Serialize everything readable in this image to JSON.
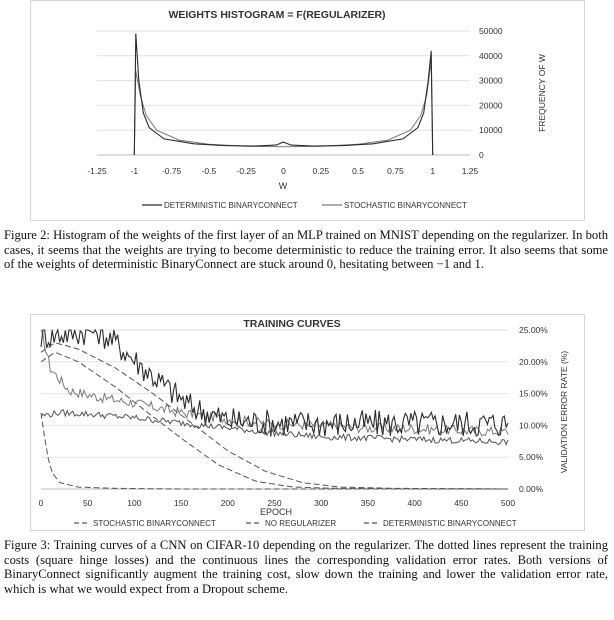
{
  "figure2": {
    "chart_data": {
      "type": "line",
      "title": "WEIGHTS HISTOGRAM = F(REGULARIZER)",
      "xlabel": "W",
      "ylabel": "FREQUENCY OF W",
      "xlim": [
        -1.25,
        1.25
      ],
      "ylim": [
        0,
        50000
      ],
      "x_ticks": [
        "-1.25",
        "-1",
        "-0.75",
        "-0.5",
        "-0.25",
        "0",
        "0.25",
        "0.5",
        "0.75",
        "1",
        "1.25"
      ],
      "y_ticks": [
        "0",
        "10000",
        "20000",
        "30000",
        "40000",
        "50000"
      ],
      "legend_position": "bottom",
      "series": [
        {
          "name": "DETERMINISTIC BINARYCONNECT",
          "style": "solid-dark",
          "points": [
            [
              -1.0,
              0
            ],
            [
              -0.99,
              49000
            ],
            [
              -0.97,
              30000
            ],
            [
              -0.94,
              17000
            ],
            [
              -0.9,
              11000
            ],
            [
              -0.8,
              6500
            ],
            [
              -0.6,
              4500
            ],
            [
              -0.4,
              3800
            ],
            [
              -0.2,
              3600
            ],
            [
              -0.05,
              4000
            ],
            [
              0,
              5200
            ],
            [
              0.05,
              4000
            ],
            [
              0.2,
              3600
            ],
            [
              0.4,
              3800
            ],
            [
              0.6,
              4500
            ],
            [
              0.8,
              6500
            ],
            [
              0.9,
              11000
            ],
            [
              0.94,
              17000
            ],
            [
              0.97,
              30000
            ],
            [
              0.99,
              42000
            ],
            [
              1.0,
              0
            ]
          ]
        },
        {
          "name": "STOCHASTIC BINARYCONNECT",
          "style": "solid-light",
          "points": [
            [
              -1.0,
              0
            ],
            [
              -0.99,
              34000
            ],
            [
              -0.96,
              24000
            ],
            [
              -0.92,
              16000
            ],
            [
              -0.85,
              10000
            ],
            [
              -0.7,
              6000
            ],
            [
              -0.5,
              4300
            ],
            [
              -0.25,
              3500
            ],
            [
              0,
              3300
            ],
            [
              0.25,
              3500
            ],
            [
              0.5,
              4300
            ],
            [
              0.7,
              6000
            ],
            [
              0.85,
              10000
            ],
            [
              0.92,
              16000
            ],
            [
              0.96,
              24000
            ],
            [
              0.99,
              38000
            ],
            [
              1.0,
              0
            ]
          ]
        }
      ]
    },
    "caption": "Figure 2: Histogram of the weights of the first layer of an MLP trained on MNIST depending on the regularizer. In both cases, it seems that the weights are trying to become deterministic to reduce the training error. It also seems that some of the weights of deterministic BinaryConnect are stuck around 0, hesitating between −1 and 1."
  },
  "figure3": {
    "chart_data": {
      "type": "line",
      "title": "TRAINING CURVES",
      "xlabel": "EPOCH",
      "ylabel": "VALIDATION ERROR RATE (%)",
      "xlim": [
        0,
        500
      ],
      "ylim": [
        0,
        25
      ],
      "x_ticks": [
        "0",
        "50",
        "100",
        "150",
        "200",
        "250",
        "300",
        "350",
        "400",
        "450",
        "500"
      ],
      "y_ticks": [
        "0.00%",
        "5.00%",
        "10.00%",
        "15.00%",
        "20.00%",
        "25.00%"
      ],
      "legend_position": "bottom",
      "legend": [
        "STOCHASTIC BINARYCONNECT",
        "NO REGULARIZER",
        "DETERMINISTIC BINARYCONNECT"
      ],
      "series": [
        {
          "name": "STOCHASTIC BINARYCONNECT",
          "kind": "validation",
          "style": "solid-light",
          "noise": 0.8,
          "points": [
            [
              0,
              25
            ],
            [
              10,
              19
            ],
            [
              30,
              15.5
            ],
            [
              60,
              14.5
            ],
            [
              100,
              13.5
            ],
            [
              150,
              12
            ],
            [
              200,
              11
            ],
            [
              250,
              10.2
            ],
            [
              300,
              10
            ],
            [
              350,
              9.6
            ],
            [
              400,
              9.5
            ],
            [
              450,
              9.2
            ],
            [
              500,
              9
            ]
          ]
        },
        {
          "name": "NO REGULARIZER",
          "kind": "validation",
          "style": "solid-dark",
          "noise": 2.2,
          "points": [
            [
              0,
              24
            ],
            [
              60,
              25
            ],
            [
              80,
              23
            ],
            [
              110,
              19
            ],
            [
              130,
              16.5
            ],
            [
              160,
              13
            ],
            [
              200,
              10.8
            ],
            [
              250,
              10.4
            ],
            [
              300,
              10.3
            ],
            [
              400,
              10.3
            ],
            [
              500,
              10.3
            ]
          ]
        },
        {
          "name": "DETERMINISTIC BINARYCONNECT",
          "kind": "validation",
          "style": "solid-mid",
          "noise": 0.5,
          "points": [
            [
              0,
              11.5
            ],
            [
              20,
              12
            ],
            [
              50,
              11.8
            ],
            [
              100,
              11.2
            ],
            [
              150,
              10.4
            ],
            [
              200,
              9.6
            ],
            [
              250,
              8.8
            ],
            [
              300,
              8.2
            ],
            [
              350,
              8
            ],
            [
              400,
              7.8
            ],
            [
              450,
              7.6
            ],
            [
              500,
              7.4
            ]
          ]
        },
        {
          "name": "STOCHASTIC BINARYCONNECT",
          "kind": "training",
          "style": "dashed",
          "noise": 0,
          "points": [
            [
              0,
              21.5
            ],
            [
              15,
              23
            ],
            [
              40,
              22
            ],
            [
              80,
              19
            ],
            [
              120,
              15
            ],
            [
              160,
              10.5
            ],
            [
              200,
              6
            ],
            [
              240,
              2.8
            ],
            [
              280,
              1
            ],
            [
              320,
              0.3
            ],
            [
              380,
              0.1
            ],
            [
              500,
              0
            ]
          ]
        },
        {
          "name": "DETERMINISTIC BINARYCONNECT",
          "kind": "training",
          "style": "dashed",
          "noise": 0,
          "points": [
            [
              0,
              20
            ],
            [
              15,
              21.5
            ],
            [
              40,
              20
            ],
            [
              80,
              16
            ],
            [
              110,
              12.5
            ],
            [
              150,
              8
            ],
            [
              190,
              3.8
            ],
            [
              230,
              1.2
            ],
            [
              270,
              0.3
            ],
            [
              320,
              0.1
            ],
            [
              500,
              0
            ]
          ]
        },
        {
          "name": "NO REGULARIZER",
          "kind": "training",
          "style": "dashed",
          "noise": 0,
          "points": [
            [
              0,
              12
            ],
            [
              5,
              7
            ],
            [
              10,
              3
            ],
            [
              20,
              1
            ],
            [
              40,
              0.3
            ],
            [
              80,
              0.1
            ],
            [
              150,
              0
            ],
            [
              500,
              0
            ]
          ]
        }
      ]
    },
    "caption": "Figure 3: Training curves of a CNN on CIFAR-10 depending on the regularizer. The dotted lines represent the training costs (square hinge losses) and the continuous lines the corresponding validation error rates. Both versions of BinaryConnect significantly augment the training cost, slow down the training and lower the validation error rate, which is what we would expect from a Dropout scheme."
  }
}
